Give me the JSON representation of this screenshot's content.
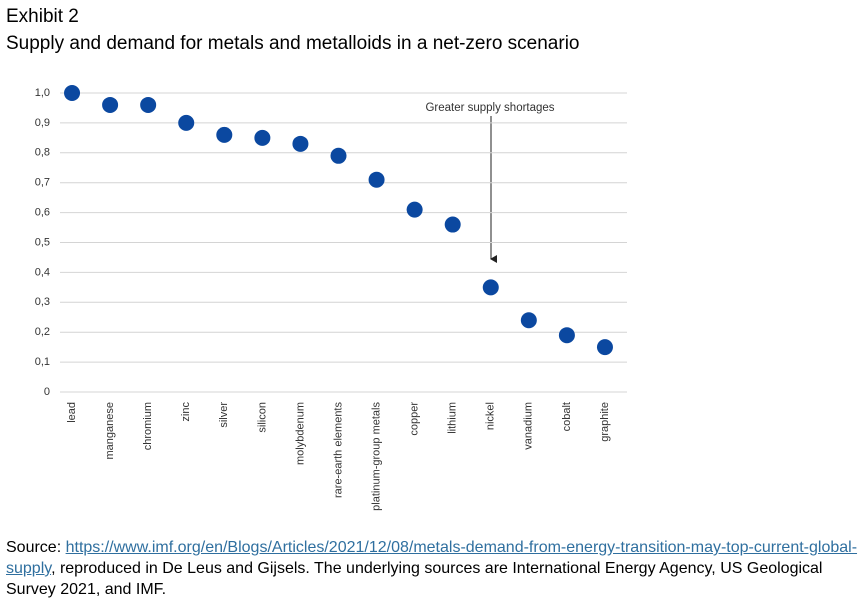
{
  "chart_data": {
    "type": "dot",
    "exhibit": "Exhibit 2",
    "title": "Supply and demand for metals and metalloids in a net-zero scenario",
    "annotation": "Greater supply shortages",
    "categories": [
      "lead",
      "manganese",
      "chromium",
      "zinc",
      "silver",
      "silicon",
      "molybdenum",
      "rare-earth elements",
      "platinum-group metals",
      "copper",
      "lithium",
      "nickel",
      "vanadium",
      "cobalt",
      "graphite"
    ],
    "values": [
      1.0,
      0.96,
      0.96,
      0.9,
      0.86,
      0.85,
      0.83,
      0.79,
      0.71,
      0.61,
      0.56,
      0.35,
      0.24,
      0.19,
      0.15
    ],
    "color": "#0b48a0",
    "ylim": [
      0,
      1
    ],
    "yticks": [
      0,
      {
        "value": 0.1,
        "label": "0,1"
      },
      {
        "value": 0.2,
        "label": "0,2"
      },
      {
        "value": 0.3,
        "label": "0,3"
      },
      {
        "value": 0.4,
        "label": "0,4"
      },
      {
        "value": 0.5,
        "label": "0,5"
      },
      {
        "value": 0.6,
        "label": "0,6"
      },
      {
        "value": 0.7,
        "label": "0,7"
      },
      {
        "value": 0.8,
        "label": "0,8"
      },
      {
        "value": 0.9,
        "label": "0,9"
      },
      {
        "value": 1,
        "label": "1,0"
      }
    ],
    "grid": true
  },
  "source": {
    "prefix": "Source: ",
    "link": "https://www.imf.org/en/Blogs/Articles/2021/12/08/metals-demand-from-energy-transition-may-top-current-global-supply",
    "suffix": ", reproduced in De Leus and Gijsels. The underlying sources are International Energy Agency, US Geological Survey 2021, and IMF."
  }
}
